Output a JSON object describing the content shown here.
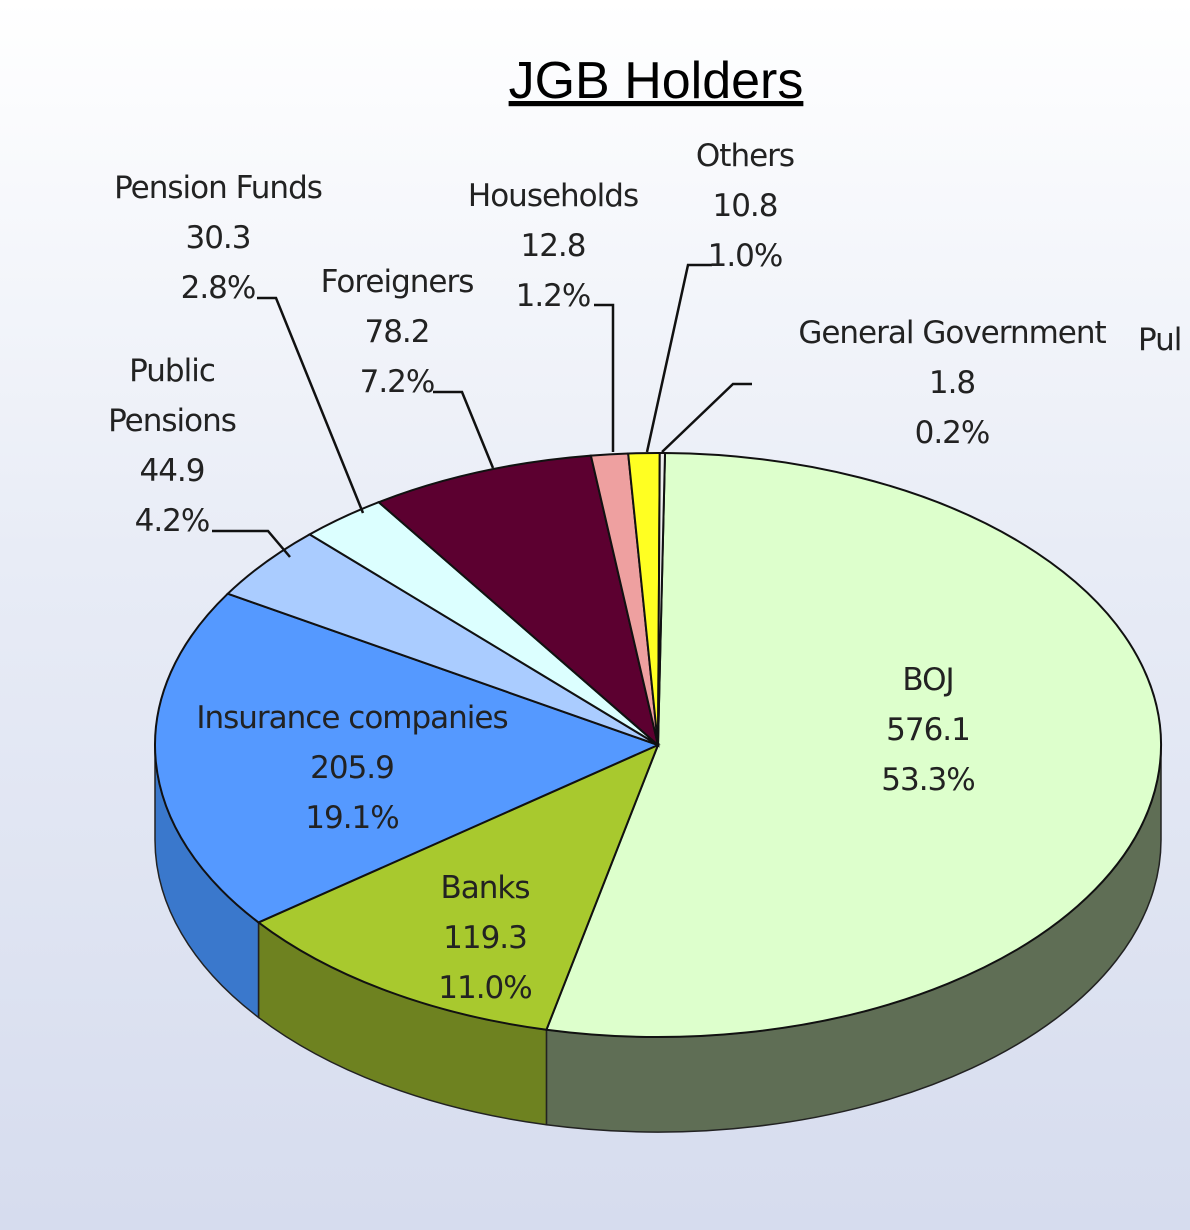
{
  "chart_data": {
    "type": "pie",
    "title": "JGB Holders",
    "truncated_label": "Pul",
    "slices": [
      {
        "name": "BOJ",
        "value": 576.1,
        "percent": "53.3%",
        "color": "#ddffcc",
        "side": "#5f6e55"
      },
      {
        "name": "Banks",
        "value": 119.3,
        "percent": "11.0%",
        "color": "#a8c92e",
        "side": "#6e8220"
      },
      {
        "name": "Insurance companies",
        "value": 205.9,
        "percent": "19.1%",
        "color": "#5599ff",
        "side": "#3a78cc"
      },
      {
        "name": "Public Pensions",
        "value": 44.9,
        "percent": "4.2%",
        "color": "#aaccff",
        "side": "#7f9fd0"
      },
      {
        "name": "Pension Funds",
        "value": 30.3,
        "percent": "2.8%",
        "color": "#dcffff",
        "side": "#a6c4c4"
      },
      {
        "name": "Foreigners",
        "value": 78.2,
        "percent": "7.2%",
        "color": "#5c0030",
        "side": "#3b001e"
      },
      {
        "name": "Households",
        "value": 12.8,
        "percent": "1.2%",
        "color": "#eea0a0",
        "side": "#b87a7a"
      },
      {
        "name": "Others",
        "value": 10.8,
        "percent": "1.0%",
        "color": "#ffff22",
        "side": "#c8c818"
      },
      {
        "name": "General Government",
        "value": 1.8,
        "percent": "0.2%",
        "color": "#eeeeee",
        "side": "#888888"
      }
    ],
    "display_names": {
      "Public Pensions": [
        "Public",
        "Pensions"
      ]
    },
    "value_labels": [
      "576.1",
      "119.3",
      "205.9",
      "44.9",
      "30.3",
      "78.2",
      "12.8",
      "10.8",
      "1.8"
    ]
  }
}
